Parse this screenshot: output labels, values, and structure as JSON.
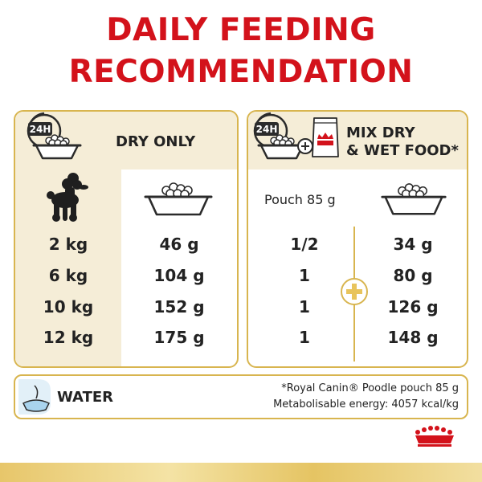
{
  "title": {
    "line1": "DAILY FEEDING",
    "line2": "RECOMMENDATION"
  },
  "colors": {
    "brand_red": "#d3121b",
    "gold": "#d8b54f",
    "cream": "#f5edd7"
  },
  "dry_only": {
    "clock_label": "24H",
    "header": "DRY ONLY",
    "rows": [
      {
        "weight": "2 kg",
        "dry": "46 g"
      },
      {
        "weight": "6 kg",
        "dry": "104 g"
      },
      {
        "weight": "10 kg",
        "dry": "152 g"
      },
      {
        "weight": "12 kg",
        "dry": "175 g"
      }
    ],
    "icons": [
      "clock-icon",
      "bowl-icon",
      "poodle-silhouette-icon"
    ]
  },
  "mix": {
    "clock_label": "24H",
    "header_line1": "MIX DRY",
    "header_line2": "& WET FOOD*",
    "pouch_label": "Pouch 85 g",
    "rows": [
      {
        "pouch": "1/2",
        "dry": "34 g"
      },
      {
        "pouch": "1",
        "dry": "80 g"
      },
      {
        "pouch": "1",
        "dry": "126 g"
      },
      {
        "pouch": "1",
        "dry": "148 g"
      }
    ],
    "icons": [
      "clock-icon",
      "bowl-icon",
      "plus-icon",
      "pouch-icon"
    ]
  },
  "water": {
    "label": "WATER",
    "footnote_line1": "*Royal Canin® Poodle pouch 85 g",
    "footnote_line2": "Metabolisable energy: 4057 kcal/kg"
  }
}
